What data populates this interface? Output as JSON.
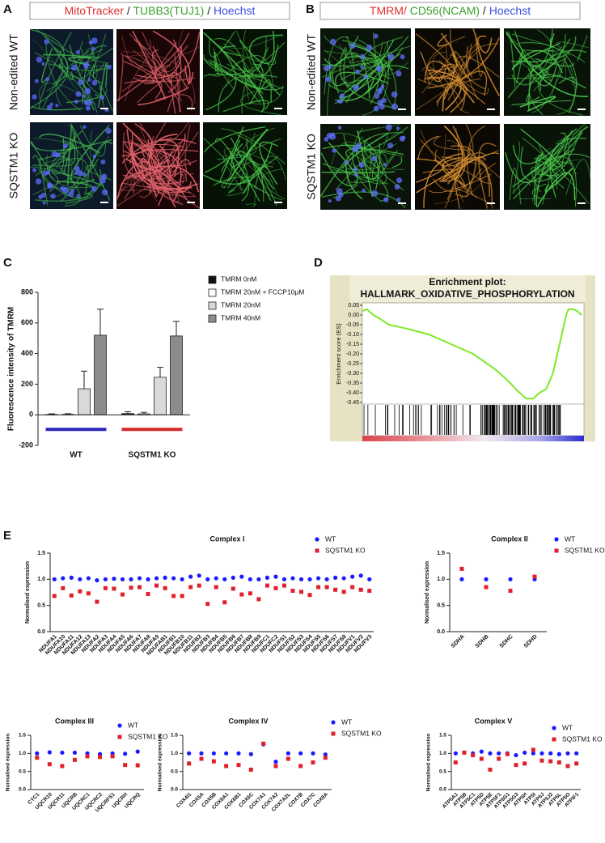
{
  "panel_labels": [
    "A",
    "B",
    "C",
    "D",
    "E"
  ],
  "imaging": [
    {
      "stains": [
        {
          "text": "MitoTracker",
          "color": "#e03030"
        },
        {
          "text": " / ",
          "color": "#222222"
        },
        {
          "text": "TUBB3(TUJ1)",
          "color": "#3aa02a"
        },
        {
          "text": " / ",
          "color": "#222222"
        },
        {
          "text": "Hoechst",
          "color": "#3b4fe0"
        }
      ],
      "rows": [
        "Non-edited WT",
        "SQSTM1 KO"
      ]
    },
    {
      "stains": [
        {
          "text": "TMRM/",
          "color": "#e03030"
        },
        {
          "text": " CD56(NCAM)",
          "color": "#3aa02a"
        },
        {
          "text": " / ",
          "color": "#222222"
        },
        {
          "text": "Hoechst",
          "color": "#3b4fe0"
        }
      ],
      "rows": [
        "Non-edited WT",
        "SQSTM1 KO"
      ]
    }
  ],
  "chart_data": [
    {
      "type": "bar",
      "ylabel": "Fluorescence intensity of TMRM",
      "categories": [
        "WT",
        "SQSTM1 KO"
      ],
      "category_colors": [
        "#2b2bb8",
        "#d42a2a"
      ],
      "ylim": [
        -200,
        800
      ],
      "yticks": [
        -200,
        0,
        200,
        400,
        600,
        800
      ],
      "series": [
        {
          "name": "TMRM 0nM",
          "color": "#111111",
          "values": [
            2,
            8
          ],
          "errors": [
            4,
            12
          ]
        },
        {
          "name": "TMRM 20nM + FCCP10µM",
          "color": "#ffffff",
          "values": [
            3,
            6
          ],
          "errors": [
            4,
            10
          ]
        },
        {
          "name": "TMRM 20nM",
          "color": "#d9d9d9",
          "values": [
            170,
            245
          ],
          "errors": [
            115,
            65
          ]
        },
        {
          "name": "TMRM 40nM",
          "color": "#8c8c8c",
          "values": [
            520,
            515
          ],
          "errors": [
            170,
            95
          ]
        }
      ]
    },
    {
      "type": "line",
      "title": "Enrichment plot:",
      "subtitle": "HALLMARK_OXIDATIVE_PHOSPHORYLATION",
      "ylabel": "Enrichment score (ES)",
      "x": [
        0,
        2,
        5,
        8,
        12,
        20,
        30,
        40,
        50,
        60,
        65,
        70,
        74,
        77,
        80,
        83,
        86,
        88,
        90,
        92,
        93,
        95,
        97,
        99
      ],
      "xlim": [
        0,
        100
      ],
      "ylim": [
        -0.45,
        0.05
      ],
      "yticks": [
        0.05,
        {
          "value": 0,
          "label": "0.00"
        },
        -0.05,
        {
          "value": -0.1,
          "label": "-0.10"
        },
        -0.15,
        {
          "value": -0.2,
          "label": "-0.20"
        },
        -0.25,
        {
          "value": -0.3,
          "label": "-0.30"
        },
        -0.35,
        {
          "value": -0.4,
          "label": "-0.40"
        },
        -0.45
      ],
      "series": [
        {
          "color": "#7ee82a",
          "values": [
            0.02,
            0.03,
            0.0,
            -0.02,
            -0.05,
            -0.07,
            -0.1,
            -0.15,
            -0.2,
            -0.28,
            -0.33,
            -0.39,
            -0.43,
            -0.43,
            -0.4,
            -0.38,
            -0.3,
            -0.2,
            -0.1,
            0.0,
            0.03,
            0.03,
            0.02,
            0.0
          ]
        }
      ]
    },
    {
      "type": "strip",
      "title": "Complex I",
      "ylabel": "Normalised expression",
      "categories": [
        "NDUFA1",
        "NDUFA10",
        "NDUFA11",
        "NDUFA12",
        "NDUFA13",
        "NDUFA2",
        "NDUFA3",
        "NDUFA4",
        "NDUFA5",
        "NDUFA6",
        "NDUFA7",
        "NDUFA8",
        "NDUFA9",
        "NDUFAB1",
        "NDUFB1",
        "NDUFB10",
        "NDUFB11",
        "NDUFB2",
        "NDUFB3",
        "NDUFB4",
        "NDUFB5",
        "NDUFB6",
        "NDUFB7",
        "NDUFB8",
        "NDUFB9",
        "NDUFC1",
        "NDUFC2",
        "NDUFS1",
        "NDUFS2",
        "NDUFS3",
        "NDUFS4",
        "NDUFS5",
        "NDUFS6",
        "NDUFS7",
        "NDUFS8",
        "NDUFV1",
        "NDUFV2",
        "NDUFV3"
      ],
      "ylim": [
        0,
        1.5
      ],
      "yticks": [
        {
          "value": 0,
          "label": "0.0"
        },
        0.5,
        {
          "value": 1,
          "label": "1.0"
        },
        1.5
      ],
      "series": [
        {
          "name": "WT",
          "color": "#1a1aff",
          "marker": "circle",
          "values": [
            1.0,
            1.02,
            1.03,
            1.0,
            1.02,
            0.98,
            1.0,
            1.01,
            1.0,
            1.0,
            1.02,
            1.0,
            1.02,
            1.03,
            1.02,
            1.0,
            1.05,
            1.07,
            1.0,
            1.02,
            1.0,
            1.03,
            1.05,
            1.0,
            1.0,
            1.03,
            1.05,
            1.0,
            1.02,
            1.0,
            1.0,
            1.02,
            1.0,
            1.03,
            1.02,
            1.05,
            1.07,
            1.0
          ]
        },
        {
          "name": "SQSTM1 KO",
          "color": "#e0202a",
          "marker": "square",
          "values": [
            0.68,
            0.83,
            0.69,
            0.77,
            0.73,
            0.57,
            0.83,
            0.82,
            0.71,
            0.84,
            0.85,
            0.72,
            0.88,
            0.83,
            0.68,
            0.68,
            0.85,
            0.88,
            0.53,
            0.85,
            0.56,
            0.82,
            0.71,
            0.73,
            0.62,
            0.88,
            0.83,
            0.88,
            0.78,
            0.76,
            0.7,
            0.85,
            0.85,
            0.8,
            0.76,
            0.85,
            0.8,
            0.78
          ]
        }
      ]
    },
    {
      "type": "strip",
      "title": "Complex II",
      "ylabel": "Normalised expression",
      "categories": [
        "SDHA",
        "SDHB",
        "SDHC",
        "SDHD"
      ],
      "ylim": [
        0,
        1.5
      ],
      "yticks": [
        {
          "value": 0,
          "label": "0.0"
        },
        0.5,
        {
          "value": 1,
          "label": "1.0"
        },
        1.5
      ],
      "series": [
        {
          "name": "WT",
          "color": "#1a1aff",
          "marker": "circle",
          "values": [
            1.0,
            1.0,
            1.0,
            1.0
          ]
        },
        {
          "name": "SQSTM1 KO",
          "color": "#e0202a",
          "marker": "square",
          "values": [
            1.2,
            0.85,
            0.78,
            1.05
          ]
        }
      ]
    },
    {
      "type": "strip",
      "title": "Complex III",
      "ylabel": "Normalised expression",
      "categories": [
        "CYC1",
        "UQCR10",
        "UQCR11",
        "UQCRB",
        "UQCRC1",
        "UQCRC2",
        "UQCRFS1",
        "UQCRH",
        "UQCRQ"
      ],
      "ylim": [
        0,
        1.5
      ],
      "yticks": [
        {
          "value": 0,
          "label": "0.0"
        },
        0.5,
        {
          "value": 1,
          "label": "1.0"
        },
        1.5
      ],
      "series": [
        {
          "name": "WT",
          "color": "#1a1aff",
          "marker": "circle",
          "values": [
            1.0,
            1.03,
            1.02,
            1.02,
            1.0,
            0.98,
            1.0,
            0.99,
            1.05
          ]
        },
        {
          "name": "SQSTM1 KO",
          "color": "#e0202a",
          "marker": "square",
          "values": [
            0.88,
            0.7,
            0.65,
            0.82,
            0.92,
            0.9,
            0.92,
            0.68,
            0.67
          ]
        }
      ]
    },
    {
      "type": "strip",
      "title": "Complex IV",
      "ylabel": "Normalised expression",
      "categories": [
        "COX4I1",
        "COX5A",
        "COX5B",
        "COX6A1",
        "COX6B1",
        "COX6C",
        "COX7A1",
        "COX7A2",
        "COX7A2L",
        "COX7B",
        "COX7C",
        "COX8A"
      ],
      "ylim": [
        0,
        1.5
      ],
      "yticks": [
        {
          "value": 0,
          "label": "0.0"
        },
        0.5,
        {
          "value": 1,
          "label": "1.0"
        },
        1.5
      ],
      "series": [
        {
          "name": "WT",
          "color": "#1a1aff",
          "marker": "circle",
          "values": [
            1.0,
            1.0,
            1.0,
            1.0,
            1.0,
            0.98,
            1.25,
            0.77,
            1.0,
            1.0,
            1.0,
            0.97
          ]
        },
        {
          "name": "SQSTM1 KO",
          "color": "#e0202a",
          "marker": "square",
          "values": [
            0.72,
            0.85,
            0.78,
            0.65,
            0.68,
            0.55,
            1.27,
            0.65,
            0.85,
            0.65,
            0.75,
            0.88
          ]
        }
      ]
    },
    {
      "type": "strip",
      "title": "Complex V",
      "ylabel": "Normalised expression",
      "categories": [
        "ATP5A1",
        "ATP5B",
        "ATP5C1",
        "ATP5D",
        "ATP5E",
        "ATP5F1",
        "ATP5G1",
        "ATP5G3",
        "ATP5H",
        "ATP5I",
        "ATP5J",
        "ATP5J2",
        "ATP5L",
        "ATP5O",
        "ATPIF1"
      ],
      "ylim": [
        0,
        1.5
      ],
      "yticks": [
        {
          "value": 0,
          "label": "0.0"
        },
        0.5,
        {
          "value": 1,
          "label": "1.0"
        },
        1.5
      ],
      "series": [
        {
          "name": "WT",
          "color": "#1a1aff",
          "marker": "circle",
          "values": [
            1.0,
            1.02,
            1.0,
            1.05,
            1.0,
            1.0,
            1.0,
            0.95,
            1.02,
            1.0,
            1.0,
            1.0,
            0.98,
            1.0,
            1.0
          ]
        },
        {
          "name": "SQSTM1 KO",
          "color": "#e0202a",
          "marker": "square",
          "values": [
            0.75,
            1.02,
            0.95,
            0.85,
            0.55,
            0.85,
            0.98,
            0.68,
            0.72,
            1.1,
            0.8,
            0.78,
            0.75,
            0.65,
            0.72
          ]
        }
      ]
    }
  ]
}
